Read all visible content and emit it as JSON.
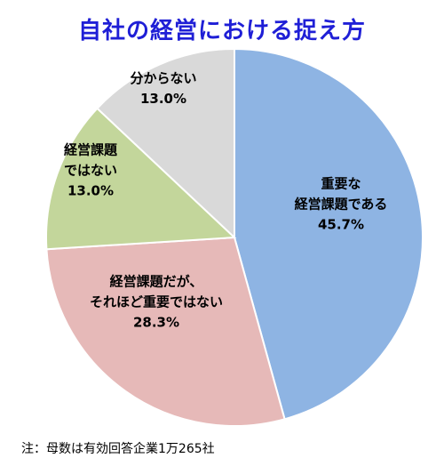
{
  "chart_data": {
    "type": "pie",
    "title": "自社の経営における捉え方",
    "unit": "%",
    "slices": [
      {
        "label_lines": [
          "重要な",
          "経営課題である"
        ],
        "value": 45.7,
        "value_label": "45.7%",
        "color": "#8eb4e3"
      },
      {
        "label_lines": [
          "経営課題だが、",
          "それほど重要ではない"
        ],
        "value": 28.3,
        "value_label": "28.3%",
        "color": "#e6b9b8"
      },
      {
        "label_lines": [
          "経営課題",
          "ではない"
        ],
        "value": 13.0,
        "value_label": "13.0%",
        "color": "#c3d69b"
      },
      {
        "label_lines": [
          "分からない"
        ],
        "value": 13.0,
        "value_label": "13.0%",
        "color": "#d9d9d9"
      }
    ],
    "start_angle": "12 o'clock",
    "direction": "clockwise",
    "legend": "none",
    "note": "注：母数は有効回答企業1万265社"
  }
}
